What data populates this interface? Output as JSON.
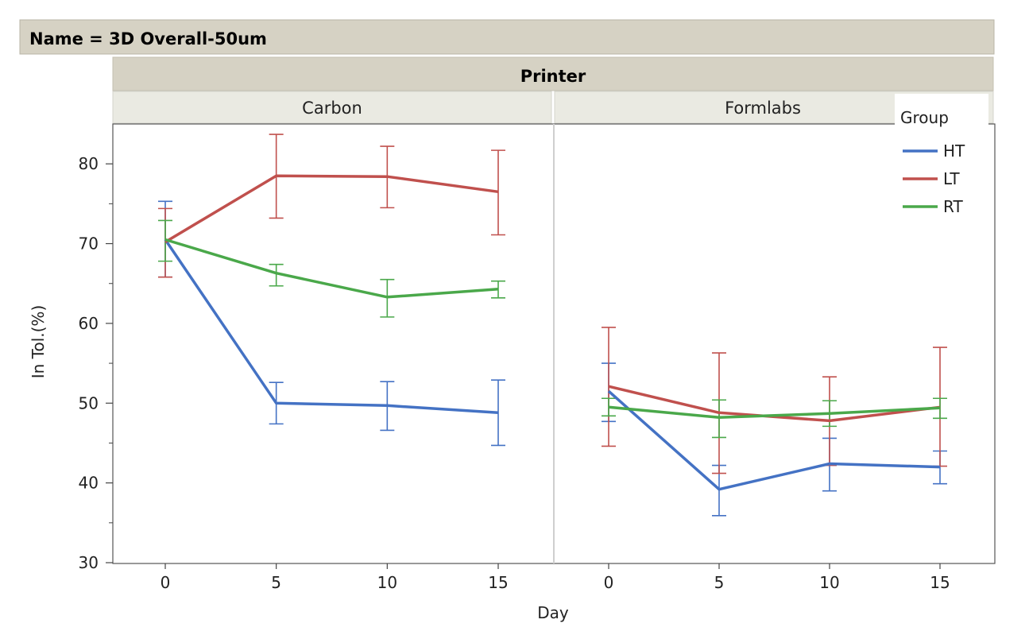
{
  "header": {
    "title": "Name = 3D Overall-50um"
  },
  "facet": {
    "title": "Printer"
  },
  "legend": {
    "title": "Group"
  },
  "colors": {
    "HT": "#4472c4",
    "LT": "#c0504d",
    "RT": "#4aa84a"
  },
  "chart_data": {
    "type": "line",
    "title": "",
    "xlabel": "Day",
    "ylabel": "In Tol.(%)",
    "x": [
      0,
      5,
      10,
      15
    ],
    "ylim": [
      30,
      85
    ],
    "yticks": [
      30,
      40,
      50,
      60,
      70,
      80
    ],
    "xticks": [
      0,
      5,
      10,
      15
    ],
    "error_bars": true,
    "legend_position": "top-right",
    "panels": [
      {
        "name": "Carbon",
        "series": [
          {
            "name": "HT",
            "values": [
              70.5,
              50.0,
              49.7,
              48.8
            ],
            "lower": [
              65.8,
              47.4,
              46.6,
              44.7
            ],
            "upper": [
              75.3,
              52.6,
              52.7,
              52.9
            ]
          },
          {
            "name": "LT",
            "values": [
              70.2,
              78.5,
              78.4,
              76.5
            ],
            "lower": [
              65.8,
              73.2,
              74.5,
              71.1
            ],
            "upper": [
              74.4,
              83.7,
              82.2,
              81.7
            ]
          },
          {
            "name": "RT",
            "values": [
              70.5,
              66.3,
              63.3,
              64.3
            ],
            "lower": [
              67.8,
              64.7,
              60.8,
              63.2
            ],
            "upper": [
              72.9,
              67.4,
              65.5,
              65.3
            ]
          }
        ]
      },
      {
        "name": "Formlabs",
        "series": [
          {
            "name": "HT",
            "values": [
              51.5,
              39.2,
              42.4,
              42.0
            ],
            "lower": [
              47.7,
              35.9,
              39.0,
              39.9
            ],
            "upper": [
              55.0,
              42.2,
              45.6,
              44.0
            ]
          },
          {
            "name": "LT",
            "values": [
              52.1,
              48.8,
              47.8,
              49.5
            ],
            "lower": [
              44.6,
              41.2,
              42.2,
              42.1
            ],
            "upper": [
              59.5,
              56.3,
              53.3,
              57.0
            ]
          },
          {
            "name": "RT",
            "values": [
              49.5,
              48.2,
              48.7,
              49.4
            ],
            "lower": [
              48.4,
              45.7,
              47.1,
              48.1
            ],
            "upper": [
              50.6,
              50.4,
              50.3,
              50.6
            ]
          }
        ]
      }
    ]
  }
}
